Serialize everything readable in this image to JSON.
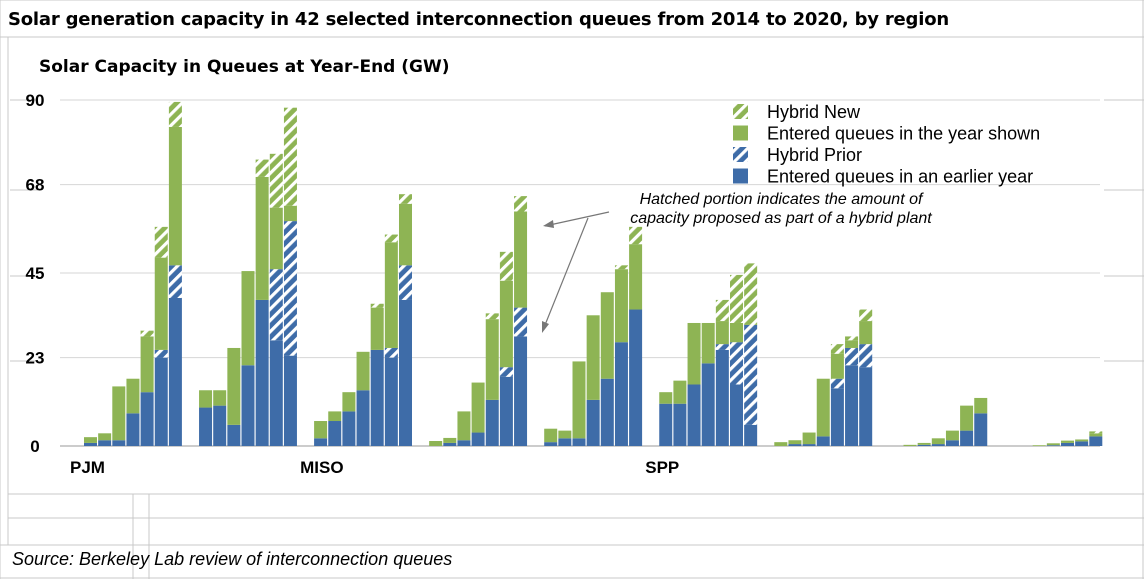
{
  "title": "Solar generation capacity in 42 selected interconnection queues from 2014 to 2020, by region",
  "source": "Source: Berkeley Lab review of interconnection queues",
  "chart_data": {
    "type": "bar",
    "stacked": true,
    "ylabel": "Solar Capacity in Queues at Year-End (GW)",
    "ylim": [
      0,
      90
    ],
    "yticks": [
      0,
      23,
      45,
      68,
      90
    ],
    "group_labels": [
      "PJM",
      "MISO",
      "SPP"
    ],
    "annotation": "Hatched portion indicates the amount of capacity proposed as part of a hybrid plant",
    "colors": {
      "green": "#8eb454",
      "blue": "#3e6ca8"
    },
    "legend_position": "top-right",
    "legend": [
      {
        "label": "Hybrid New",
        "color": "#8eb454",
        "hatched": true
      },
      {
        "label": "Entered queues in the year shown",
        "color": "#8eb454",
        "hatched": false
      },
      {
        "label": "Hybrid Prior",
        "color": "#3e6ca8",
        "hatched": true
      },
      {
        "label": "Entered queues in an earlier year",
        "color": "#3e6ca8",
        "hatched": false
      }
    ],
    "series_keys": [
      "earlier",
      "hybrid_prior",
      "entered",
      "hybrid_new"
    ],
    "groups": [
      {
        "name": "PJM",
        "bars": [
          {
            "earlier": 0.8,
            "hybrid_prior": 0,
            "entered": 1.5,
            "hybrid_new": 0
          },
          {
            "earlier": 1.5,
            "hybrid_prior": 0,
            "entered": 1.8,
            "hybrid_new": 0
          },
          {
            "earlier": 1.5,
            "hybrid_prior": 0,
            "entered": 14.0,
            "hybrid_new": 0
          },
          {
            "earlier": 8.5,
            "hybrid_prior": 0,
            "entered": 9.0,
            "hybrid_new": 0
          },
          {
            "earlier": 14.0,
            "hybrid_prior": 0,
            "entered": 14.5,
            "hybrid_new": 1.5
          },
          {
            "earlier": 23.0,
            "hybrid_prior": 2.0,
            "entered": 24.0,
            "hybrid_new": 8.0
          },
          {
            "earlier": 38.5,
            "hybrid_prior": 8.5,
            "entered": 36.0,
            "hybrid_new": 6.5
          }
        ]
      },
      {
        "name": "",
        "bars": [
          {
            "earlier": 10.0,
            "hybrid_prior": 0,
            "entered": 4.5,
            "hybrid_new": 0
          },
          {
            "earlier": 10.5,
            "hybrid_prior": 0,
            "entered": 4.0,
            "hybrid_new": 0
          },
          {
            "earlier": 5.5,
            "hybrid_prior": 0,
            "entered": 20.0,
            "hybrid_new": 0
          },
          {
            "earlier": 21.0,
            "hybrid_prior": 0,
            "entered": 24.5,
            "hybrid_new": 0
          },
          {
            "earlier": 38.0,
            "hybrid_prior": 0,
            "entered": 32.0,
            "hybrid_new": 4.5
          },
          {
            "earlier": 27.5,
            "hybrid_prior": 18.5,
            "entered": 16.0,
            "hybrid_new": 14.0
          },
          {
            "earlier": 23.5,
            "hybrid_prior": 35.0,
            "entered": 4.0,
            "hybrid_new": 25.5
          }
        ]
      },
      {
        "name": "MISO",
        "bars": [
          {
            "earlier": 2.0,
            "hybrid_prior": 0,
            "entered": 4.5,
            "hybrid_new": 0
          },
          {
            "earlier": 6.5,
            "hybrid_prior": 0,
            "entered": 2.5,
            "hybrid_new": 0
          },
          {
            "earlier": 9.0,
            "hybrid_prior": 0,
            "entered": 5.0,
            "hybrid_new": 0
          },
          {
            "earlier": 14.5,
            "hybrid_prior": 0,
            "entered": 10.0,
            "hybrid_new": 0
          },
          {
            "earlier": 25.0,
            "hybrid_prior": 0,
            "entered": 11.0,
            "hybrid_new": 1.0
          },
          {
            "earlier": 23.0,
            "hybrid_prior": 2.5,
            "entered": 27.5,
            "hybrid_new": 2.0
          },
          {
            "earlier": 38.0,
            "hybrid_prior": 9.0,
            "entered": 16.0,
            "hybrid_new": 2.5
          }
        ]
      },
      {
        "name": "",
        "bars": [
          {
            "earlier": 0,
            "hybrid_prior": 0,
            "entered": 1.3,
            "hybrid_new": 0
          },
          {
            "earlier": 0.8,
            "hybrid_prior": 0,
            "entered": 1.3,
            "hybrid_new": 0
          },
          {
            "earlier": 1.5,
            "hybrid_prior": 0,
            "entered": 7.5,
            "hybrid_new": 0
          },
          {
            "earlier": 3.5,
            "hybrid_prior": 0,
            "entered": 13.0,
            "hybrid_new": 0
          },
          {
            "earlier": 12.0,
            "hybrid_prior": 0,
            "entered": 21.0,
            "hybrid_new": 1.5
          },
          {
            "earlier": 18.0,
            "hybrid_prior": 2.5,
            "entered": 22.5,
            "hybrid_new": 7.5
          },
          {
            "earlier": 28.5,
            "hybrid_prior": 7.5,
            "entered": 25.0,
            "hybrid_new": 4.0
          }
        ]
      },
      {
        "name": "",
        "bars": [
          {
            "earlier": 1.0,
            "hybrid_prior": 0,
            "entered": 3.5,
            "hybrid_new": 0
          },
          {
            "earlier": 2.0,
            "hybrid_prior": 0,
            "entered": 2.0,
            "hybrid_new": 0
          },
          {
            "earlier": 2.0,
            "hybrid_prior": 0,
            "entered": 20.0,
            "hybrid_new": 0
          },
          {
            "earlier": 12.0,
            "hybrid_prior": 0,
            "entered": 22.0,
            "hybrid_new": 0
          },
          {
            "earlier": 17.5,
            "hybrid_prior": 0,
            "entered": 22.5,
            "hybrid_new": 0
          },
          {
            "earlier": 27.0,
            "hybrid_prior": 0,
            "entered": 19.0,
            "hybrid_new": 1.0
          },
          {
            "earlier": 35.5,
            "hybrid_prior": 0,
            "entered": 17.0,
            "hybrid_new": 4.5
          }
        ]
      },
      {
        "name": "SPP",
        "bars": [
          {
            "earlier": 11.0,
            "hybrid_prior": 0,
            "entered": 3.0,
            "hybrid_new": 0
          },
          {
            "earlier": 11.0,
            "hybrid_prior": 0,
            "entered": 6.0,
            "hybrid_new": 0
          },
          {
            "earlier": 16.0,
            "hybrid_prior": 0,
            "entered": 16.0,
            "hybrid_new": 0
          },
          {
            "earlier": 21.5,
            "hybrid_prior": 0,
            "entered": 10.5,
            "hybrid_new": 0
          },
          {
            "earlier": 25.0,
            "hybrid_prior": 1.5,
            "entered": 6.0,
            "hybrid_new": 5.5
          },
          {
            "earlier": 16.0,
            "hybrid_prior": 11.0,
            "entered": 5.0,
            "hybrid_new": 12.5
          },
          {
            "earlier": 5.5,
            "hybrid_prior": 26.0,
            "entered": 0,
            "hybrid_new": 16.0
          }
        ]
      },
      {
        "name": "",
        "bars": [
          {
            "earlier": 0,
            "hybrid_prior": 0,
            "entered": 1.0,
            "hybrid_new": 0
          },
          {
            "earlier": 0.5,
            "hybrid_prior": 0,
            "entered": 1.0,
            "hybrid_new": 0
          },
          {
            "earlier": 0.5,
            "hybrid_prior": 0,
            "entered": 3.0,
            "hybrid_new": 0
          },
          {
            "earlier": 2.5,
            "hybrid_prior": 0,
            "entered": 15.0,
            "hybrid_new": 0
          },
          {
            "earlier": 15.0,
            "hybrid_prior": 2.5,
            "entered": 6.5,
            "hybrid_new": 2.5
          },
          {
            "earlier": 21.0,
            "hybrid_prior": 4.5,
            "entered": 2.0,
            "hybrid_new": 1.0
          },
          {
            "earlier": 20.5,
            "hybrid_prior": 6.0,
            "entered": 6.0,
            "hybrid_new": 3.0
          }
        ]
      },
      {
        "name": "",
        "bars": [
          {
            "earlier": 0,
            "hybrid_prior": 0,
            "entered": 0,
            "hybrid_new": 0
          },
          {
            "earlier": 0,
            "hybrid_prior": 0,
            "entered": 0.3,
            "hybrid_new": 0
          },
          {
            "earlier": 0.3,
            "hybrid_prior": 0,
            "entered": 0.5,
            "hybrid_new": 0
          },
          {
            "earlier": 0.5,
            "hybrid_prior": 0,
            "entered": 1.5,
            "hybrid_new": 0
          },
          {
            "earlier": 1.5,
            "hybrid_prior": 0,
            "entered": 2.5,
            "hybrid_new": 0
          },
          {
            "earlier": 4.0,
            "hybrid_prior": 0,
            "entered": 6.5,
            "hybrid_new": 0
          },
          {
            "earlier": 8.5,
            "hybrid_prior": 0,
            "entered": 4.0,
            "hybrid_new": 0
          }
        ]
      },
      {
        "name": "",
        "bars": [
          {
            "earlier": 0,
            "hybrid_prior": 0,
            "entered": 0,
            "hybrid_new": 0
          },
          {
            "earlier": 0,
            "hybrid_prior": 0,
            "entered": 0,
            "hybrid_new": 0
          },
          {
            "earlier": 0,
            "hybrid_prior": 0,
            "entered": 0.2,
            "hybrid_new": 0
          },
          {
            "earlier": 0.2,
            "hybrid_prior": 0,
            "entered": 0.5,
            "hybrid_new": 0
          },
          {
            "earlier": 0.8,
            "hybrid_prior": 0,
            "entered": 0.6,
            "hybrid_new": 0
          },
          {
            "earlier": 1.2,
            "hybrid_prior": 0,
            "entered": 0.5,
            "hybrid_new": 0
          },
          {
            "earlier": 2.5,
            "hybrid_prior": 0,
            "entered": 0.8,
            "hybrid_new": 0.5
          }
        ]
      }
    ]
  }
}
